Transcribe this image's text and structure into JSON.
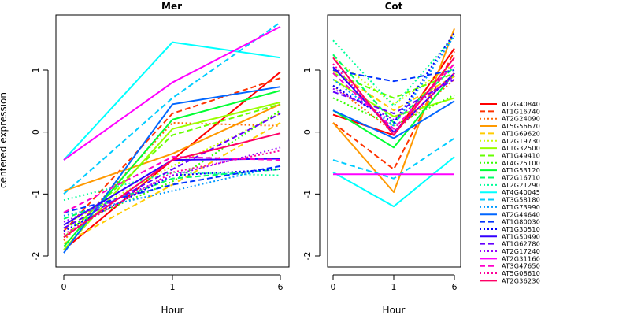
{
  "chart_data": [
    {
      "type": "line",
      "panel": "Mer",
      "title": "Mer",
      "xlabel": "Hour",
      "ylabel": "centered expression",
      "categories": [
        "0",
        "1",
        "6"
      ],
      "ylim": [
        -2.1,
        1.9
      ],
      "yticks": [
        -2,
        -1,
        0,
        1
      ],
      "series": [
        {
          "name": "AT2G40840",
          "values": [
            -1.9,
            -0.45,
            0.97
          ]
        },
        {
          "name": "AT1G16740",
          "values": [
            -1.6,
            0.3,
            0.87
          ]
        },
        {
          "name": "AT2G24090",
          "values": [
            -1.75,
            0.15,
            0.1
          ]
        },
        {
          "name": "AT5G56670",
          "values": [
            -0.95,
            -0.35,
            0.45
          ]
        },
        {
          "name": "AT1G69620",
          "values": [
            -1.8,
            -0.85,
            0.15
          ]
        },
        {
          "name": "AT2G19730",
          "values": [
            -1.5,
            -0.55,
            0.3
          ]
        },
        {
          "name": "AT1G32500",
          "values": [
            -1.9,
            0.05,
            0.48
          ]
        },
        {
          "name": "AT1G49410",
          "values": [
            -1.7,
            -0.05,
            0.45
          ]
        },
        {
          "name": "AT4G25100",
          "values": [
            -1.55,
            -0.8,
            0.35
          ]
        },
        {
          "name": "AT1G53120",
          "values": [
            -1.85,
            0.2,
            0.67
          ]
        },
        {
          "name": "AT2G16710",
          "values": [
            -1.4,
            -0.75,
            -0.6
          ]
        },
        {
          "name": "AT2G21290",
          "values": [
            -1.1,
            -0.65,
            -0.7
          ]
        },
        {
          "name": "AT4G40045",
          "values": [
            -0.45,
            1.45,
            1.2
          ]
        },
        {
          "name": "AT3G58180",
          "values": [
            -1.0,
            0.55,
            1.77
          ]
        },
        {
          "name": "AT1G73990",
          "values": [
            -1.35,
            -0.95,
            -0.55
          ]
        },
        {
          "name": "AT2G44640",
          "values": [
            -1.95,
            0.45,
            0.73
          ]
        },
        {
          "name": "AT1G80030",
          "values": [
            -1.3,
            -0.85,
            -0.55
          ]
        },
        {
          "name": "AT1G30510",
          "values": [
            -1.6,
            -0.7,
            -0.6
          ]
        },
        {
          "name": "AT1G50490",
          "values": [
            -1.5,
            -0.45,
            -0.43
          ]
        },
        {
          "name": "AT1G62780",
          "values": [
            -1.55,
            -0.6,
            0.3
          ]
        },
        {
          "name": "AT2G17240",
          "values": [
            -1.45,
            -0.7,
            -0.25
          ]
        },
        {
          "name": "AT2G31160",
          "values": [
            -0.45,
            0.8,
            1.7
          ]
        },
        {
          "name": "AT3G47650",
          "values": [
            -1.3,
            -0.4,
            -0.45
          ]
        },
        {
          "name": "AT5G08610",
          "values": [
            -1.65,
            -0.65,
            -0.3
          ]
        },
        {
          "name": "AT2G36230",
          "values": [
            -1.7,
            -0.45,
            -0.02
          ]
        }
      ]
    },
    {
      "type": "line",
      "panel": "Cot",
      "title": "Cot",
      "xlabel": "Hour",
      "ylabel": "",
      "categories": [
        "0",
        "1",
        "6"
      ],
      "ylim": [
        -2.1,
        1.9
      ],
      "yticks": [
        -2,
        -1,
        0,
        1
      ],
      "series": [
        {
          "name": "AT2G40840",
          "values": [
            0.28,
            -0.05,
            1.35
          ]
        },
        {
          "name": "AT1G16740",
          "values": [
            0.15,
            -0.6,
            1.3
          ]
        },
        {
          "name": "AT2G24090",
          "values": [
            0.75,
            0.0,
            0.85
          ]
        },
        {
          "name": "AT5G56670",
          "values": [
            0.15,
            -0.97,
            1.67
          ]
        },
        {
          "name": "AT1G69620",
          "values": [
            1.0,
            0.35,
            0.9
          ]
        },
        {
          "name": "AT2G19730",
          "values": [
            1.2,
            0.45,
            1.1
          ]
        },
        {
          "name": "AT1G32500",
          "values": [
            0.85,
            0.25,
            0.55
          ]
        },
        {
          "name": "AT1G49410",
          "values": [
            0.95,
            0.55,
            0.95
          ]
        },
        {
          "name": "AT4G25100",
          "values": [
            0.55,
            0.1,
            0.6
          ]
        },
        {
          "name": "AT1G53120",
          "values": [
            0.35,
            -0.25,
            0.95
          ]
        },
        {
          "name": "AT2G16710",
          "values": [
            1.25,
            0.15,
            1.05
          ]
        },
        {
          "name": "AT2G21290",
          "values": [
            1.48,
            0.42,
            1.55
          ]
        },
        {
          "name": "AT4G40045",
          "values": [
            -0.65,
            -1.2,
            -0.4
          ]
        },
        {
          "name": "AT3G58180",
          "values": [
            -0.45,
            -0.75,
            -0.1
          ]
        },
        {
          "name": "AT1G73990",
          "values": [
            0.85,
            0.1,
            1.55
          ]
        },
        {
          "name": "AT2G44640",
          "values": [
            0.35,
            -0.1,
            0.5
          ]
        },
        {
          "name": "AT1G80030",
          "values": [
            1.0,
            0.82,
            1.0
          ]
        },
        {
          "name": "AT1G30510",
          "values": [
            0.75,
            0.15,
            1.6
          ]
        },
        {
          "name": "AT1G50490",
          "values": [
            1.05,
            0.0,
            0.95
          ]
        },
        {
          "name": "AT1G62780",
          "values": [
            0.65,
            0.3,
            0.85
          ]
        },
        {
          "name": "AT2G17240",
          "values": [
            0.7,
            0.2,
            0.9
          ]
        },
        {
          "name": "AT2G31160",
          "values": [
            -0.68,
            -0.68,
            -0.68
          ]
        },
        {
          "name": "AT3G47650",
          "values": [
            0.95,
            0.05,
            1.1
          ]
        },
        {
          "name": "AT5G08610",
          "values": [
            1.1,
            0.0,
            0.95
          ]
        },
        {
          "name": "AT2G36230",
          "values": [
            1.2,
            -0.05,
            1.2
          ]
        }
      ]
    }
  ],
  "legend": {
    "placement": "right",
    "entries": [
      {
        "label": "AT2G40840",
        "color": "#ff0000",
        "dash": "solid"
      },
      {
        "label": "AT1G16740",
        "color": "#ff3300",
        "dash": "dashed"
      },
      {
        "label": "AT2G24090",
        "color": "#ff6600",
        "dash": "dotted"
      },
      {
        "label": "AT5G56670",
        "color": "#ff9900",
        "dash": "solid"
      },
      {
        "label": "AT1G69620",
        "color": "#ffcc00",
        "dash": "dashed"
      },
      {
        "label": "AT2G19730",
        "color": "#ccff00",
        "dash": "dotted"
      },
      {
        "label": "AT1G32500",
        "color": "#99ff00",
        "dash": "solid"
      },
      {
        "label": "AT1G49410",
        "color": "#66ff00",
        "dash": "dashed"
      },
      {
        "label": "AT4G25100",
        "color": "#33ff00",
        "dash": "dotted"
      },
      {
        "label": "AT1G53120",
        "color": "#00ff33",
        "dash": "solid"
      },
      {
        "label": "AT2G16710",
        "color": "#00ff66",
        "dash": "dashed"
      },
      {
        "label": "AT2G21290",
        "color": "#00ff99",
        "dash": "dotted"
      },
      {
        "label": "AT4G40045",
        "color": "#00ffff",
        "dash": "solid"
      },
      {
        "label": "AT3G58180",
        "color": "#00ccff",
        "dash": "dashed"
      },
      {
        "label": "AT1G73990",
        "color": "#0099ff",
        "dash": "dotted"
      },
      {
        "label": "AT2G44640",
        "color": "#0066ff",
        "dash": "solid"
      },
      {
        "label": "AT1G80030",
        "color": "#0033ff",
        "dash": "dashed"
      },
      {
        "label": "AT1G30510",
        "color": "#0000ff",
        "dash": "dotted"
      },
      {
        "label": "AT1G50490",
        "color": "#3300ff",
        "dash": "solid"
      },
      {
        "label": "AT1G62780",
        "color": "#6600ff",
        "dash": "dashed"
      },
      {
        "label": "AT2G17240",
        "color": "#9900ff",
        "dash": "dotted"
      },
      {
        "label": "AT2G31160",
        "color": "#ff00ff",
        "dash": "solid"
      },
      {
        "label": "AT3G47650",
        "color": "#ff00cc",
        "dash": "dashed"
      },
      {
        "label": "AT5G08610",
        "color": "#ff0099",
        "dash": "dotted"
      },
      {
        "label": "AT2G36230",
        "color": "#ff0066",
        "dash": "solid"
      }
    ]
  }
}
